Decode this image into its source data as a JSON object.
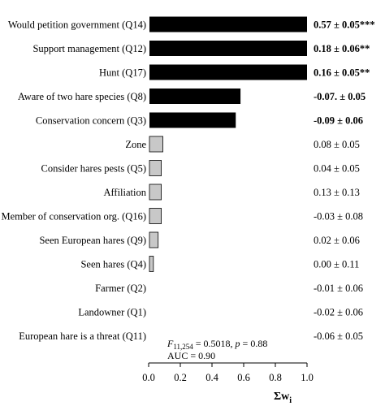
{
  "chart_data": {
    "type": "bar",
    "orientation": "horizontal",
    "xlabel": "Σw",
    "xlabel_subscript": "i",
    "xlim": [
      0,
      1.0
    ],
    "xticks": [
      "0.0",
      "0.2",
      "0.4",
      "0.6",
      "0.8",
      "1.0"
    ],
    "grid": false,
    "categories": [
      "Would petition government (Q14)",
      "Support management (Q12)",
      "Hunt (Q17)",
      "Aware of two hare species (Q8)",
      "Conservation concern (Q3)",
      "Zone",
      "Consider hares pests (Q5)",
      "Affiliation",
      "Member of conservation org. (Q16)",
      "Seen European hares (Q9)",
      "Seen hares (Q4)",
      "Farmer (Q2)",
      "Landowner (Q1)",
      "European hare is a threat (Q11)"
    ],
    "values": [
      1.0,
      1.0,
      1.0,
      0.58,
      0.55,
      0.09,
      0.08,
      0.08,
      0.08,
      0.06,
      0.03,
      0.0,
      0.0,
      0.0
    ],
    "coefficients": [
      "0.57 ± 0.05***",
      "0.18 ± 0.06**",
      "0.16 ± 0.05**",
      "-0.07. ± 0.05",
      "-0.09 ± 0.06",
      "0.08 ± 0.05",
      "0.04 ± 0.05",
      "0.13 ± 0.13",
      "-0.03 ± 0.08",
      "0.02 ± 0.06",
      "0.00 ± 0.11",
      "-0.01 ± 0.06",
      "-0.02 ± 0.06",
      "-0.06 ± 0.05"
    ],
    "coefficient_bold": [
      true,
      true,
      true,
      true,
      true,
      false,
      false,
      false,
      false,
      false,
      false,
      false,
      false,
      false
    ],
    "bar_colors": {
      "important": "#000000",
      "other": "#c8c8c8",
      "outline": "#000000"
    },
    "important_threshold": 0.5,
    "annotation": {
      "line1_F": "F",
      "line1_F_sub": "11,254",
      "line1_mid": " = 0.5018, ",
      "line1_p": "p",
      "line1_end": " = 0.88",
      "line2": "AUC = 0.90"
    }
  }
}
